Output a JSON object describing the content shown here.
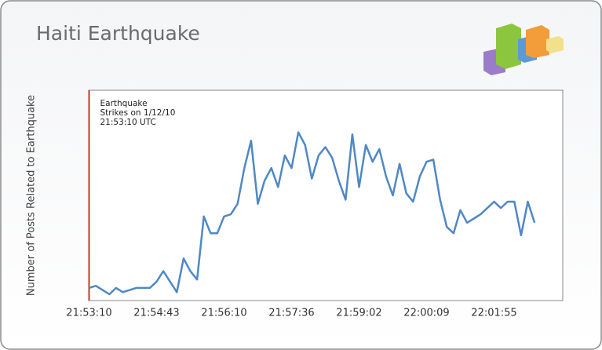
{
  "chart_data": {
    "type": "line",
    "title": "Haiti Earthquake",
    "y_label": "Number of Posts Related to Earthquake",
    "annotation": [
      "Earthquake",
      "Strikes on 1/12/10",
      "21:53:10 UTC"
    ],
    "categories": [
      "21:53:10",
      null,
      null,
      null,
      null,
      null,
      null,
      null,
      null,
      null,
      "21:54:43",
      null,
      null,
      null,
      null,
      null,
      null,
      null,
      null,
      null,
      "21:56:10",
      null,
      null,
      null,
      null,
      null,
      null,
      null,
      null,
      null,
      "21:57:36",
      null,
      null,
      null,
      null,
      null,
      null,
      null,
      null,
      null,
      "21:59:02",
      null,
      null,
      null,
      null,
      null,
      null,
      null,
      null,
      null,
      "22:00:09",
      null,
      null,
      null,
      null,
      null,
      null,
      null,
      null,
      null,
      "22:01:55",
      null,
      null,
      null,
      null,
      null,
      null
    ],
    "values": [
      6,
      7,
      5,
      3,
      6,
      4,
      5,
      6,
      6,
      6,
      9,
      14,
      9,
      4,
      20,
      14,
      10,
      40,
      32,
      32,
      40,
      41,
      46,
      63,
      76,
      46,
      57,
      63,
      54,
      69,
      63,
      80,
      74,
      58,
      69,
      73,
      68,
      57,
      48,
      79,
      54,
      74,
      66,
      72,
      59,
      50,
      65,
      51,
      47,
      59,
      66,
      67,
      48,
      35,
      32,
      43,
      37,
      39,
      41,
      44,
      47,
      44,
      47,
      47,
      31,
      47,
      37
    ],
    "color": "#4f88c4",
    "annotation_color": "#c0392b",
    "ylim": [
      0,
      100
    ]
  }
}
